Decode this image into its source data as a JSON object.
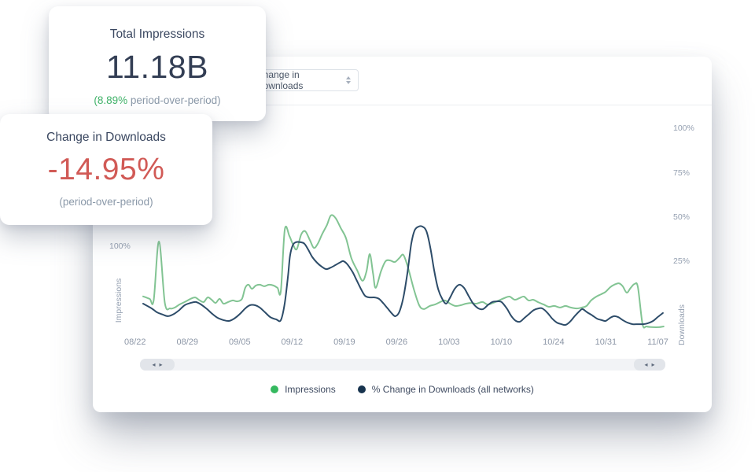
{
  "cards": {
    "total_impressions": {
      "title": "Total Impressions",
      "value": "11.18B",
      "delta_value": "(8.89%",
      "delta_label": " period-over-period)"
    },
    "change_in_downloads": {
      "title": "Change in Downloads",
      "value": "-14.95%",
      "caption": "(period-over-period)"
    }
  },
  "panel": {
    "metric_select": {
      "value": "Change in Downloads"
    },
    "scrollbar": {
      "left_arrow": "◂",
      "right_arrow": "▸"
    }
  },
  "colors": {
    "accent_green": "#3fb268",
    "accent_red": "#d15a56",
    "line_green": "#82c493",
    "line_navy": "#2d4c69",
    "legend_green_dot": "#35b95f",
    "legend_navy_dot": "#17334e"
  },
  "chart_data": {
    "type": "line",
    "title": "",
    "x_unit": "days since 08/22",
    "value_unit": "%",
    "x_tick_labels": [
      "08/22",
      "08/29",
      "09/05",
      "09/12",
      "09/19",
      "09/26",
      "10/03",
      "10/10",
      "10/24",
      "10/31",
      "11/07"
    ],
    "y_axis_left": {
      "label": "Impressions",
      "ticks": [
        "100%"
      ]
    },
    "y_axis_right": {
      "label": "Downloads",
      "ticks": [
        "100%",
        "75%",
        "50%",
        "25%"
      ],
      "tick_values": [
        100,
        75,
        50,
        25
      ]
    },
    "grid": false,
    "legend_position": "bottom",
    "legend": [
      {
        "name": "Impressions",
        "color": "#35b95f"
      },
      {
        "name": "% Change in Downloads (all networks)",
        "color": "#17334e"
      }
    ],
    "series": [
      {
        "name": "Impressions",
        "color": "#82c493",
        "points": [
          [
            0,
            5
          ],
          [
            1,
            3.6
          ],
          [
            1.6,
            2.7
          ],
          [
            2.4,
            36
          ],
          [
            3.3,
            1.3
          ],
          [
            4.1,
            -1.8
          ],
          [
            4.8,
            -1.3
          ],
          [
            5.5,
            0.4
          ],
          [
            6.3,
            1.8
          ],
          [
            7.2,
            3.6
          ],
          [
            7.9,
            4.4
          ],
          [
            8.6,
            2.7
          ],
          [
            9.2,
            1.8
          ],
          [
            9.8,
            4.4
          ],
          [
            10.4,
            3.1
          ],
          [
            11,
            1.3
          ],
          [
            11.6,
            3.6
          ],
          [
            12.2,
            0.9
          ],
          [
            12.9,
            1.8
          ],
          [
            13.6,
            2.7
          ],
          [
            14.3,
            2.2
          ],
          [
            15,
            3.6
          ],
          [
            15.5,
            9.8
          ],
          [
            16,
            11.6
          ],
          [
            16.5,
            9.3
          ],
          [
            17.1,
            11.1
          ],
          [
            17.7,
            11.6
          ],
          [
            18.4,
            10.7
          ],
          [
            19.1,
            11.6
          ],
          [
            19.8,
            11.1
          ],
          [
            20.4,
            9.8
          ],
          [
            20.9,
            8
          ],
          [
            21.5,
            42.7
          ],
          [
            22.2,
            39.1
          ],
          [
            22.7,
            34.7
          ],
          [
            23.3,
            31.6
          ],
          [
            24,
            40
          ],
          [
            24.6,
            41.8
          ],
          [
            25.3,
            36.9
          ],
          [
            25.9,
            32.4
          ],
          [
            26.5,
            34.7
          ],
          [
            27.2,
            40.4
          ],
          [
            27.9,
            45.3
          ],
          [
            28.5,
            50.7
          ],
          [
            29.2,
            49.3
          ],
          [
            30,
            43.6
          ],
          [
            30.8,
            37.8
          ],
          [
            31.6,
            26.7
          ],
          [
            32.5,
            19.6
          ],
          [
            33.3,
            13.8
          ],
          [
            33.9,
            19.1
          ],
          [
            34.4,
            28.9
          ],
          [
            34.9,
            17.8
          ],
          [
            35.3,
            9.8
          ],
          [
            36.1,
            19.1
          ],
          [
            36.8,
            24.9
          ],
          [
            37.5,
            25.3
          ],
          [
            38.2,
            24.4
          ],
          [
            38.9,
            26.7
          ],
          [
            39.5,
            28.4
          ],
          [
            40.2,
            21.3
          ],
          [
            41.1,
            8.9
          ],
          [
            41.9,
            0
          ],
          [
            42.6,
            -2.2
          ],
          [
            43.5,
            -0.4
          ],
          [
            44.3,
            0.4
          ],
          [
            45.1,
            1.8
          ],
          [
            45.8,
            2.7
          ],
          [
            46.6,
            0.9
          ],
          [
            47.4,
            -0.4
          ],
          [
            48.2,
            0
          ],
          [
            49,
            0.9
          ],
          [
            49.8,
            1.3
          ],
          [
            50.6,
            0.9
          ],
          [
            51.5,
            1.8
          ],
          [
            52.3,
            0.4
          ],
          [
            53.1,
            1.3
          ],
          [
            54,
            2.7
          ],
          [
            54.8,
            4
          ],
          [
            55.6,
            4.9
          ],
          [
            56.4,
            3.1
          ],
          [
            57.1,
            4
          ],
          [
            57.8,
            4.9
          ],
          [
            58.5,
            2.7
          ],
          [
            59.2,
            3.1
          ],
          [
            59.9,
            1.8
          ],
          [
            60.8,
            0.4
          ],
          [
            61.6,
            -0.9
          ],
          [
            62.4,
            -0.4
          ],
          [
            63.3,
            -1.3
          ],
          [
            64.1,
            -0.4
          ],
          [
            64.9,
            -1.3
          ],
          [
            65.8,
            -1.8
          ],
          [
            66.6,
            -1.3
          ],
          [
            67.3,
            -0.4
          ],
          [
            68,
            2.7
          ],
          [
            68.8,
            4.9
          ],
          [
            69.5,
            6.2
          ],
          [
            70.2,
            7.6
          ],
          [
            70.9,
            10.2
          ],
          [
            71.5,
            11.6
          ],
          [
            72.2,
            12.4
          ],
          [
            72.8,
            10.7
          ],
          [
            73.4,
            7.1
          ],
          [
            74,
            9.8
          ],
          [
            74.6,
            12
          ],
          [
            75.1,
            10.2
          ],
          [
            75.8,
            -10.7
          ],
          [
            76.4,
            -12
          ],
          [
            77.4,
            -12.4
          ],
          [
            78.3,
            -12.4
          ],
          [
            79,
            -12
          ]
        ]
      },
      {
        "name": "% Change in Downloads (all networks)",
        "color": "#2d4c69",
        "points": [
          [
            0,
            0.9
          ],
          [
            1.3,
            -1.8
          ],
          [
            2.1,
            -4
          ],
          [
            3,
            -5.3
          ],
          [
            3.8,
            -6.2
          ],
          [
            4.7,
            -4.9
          ],
          [
            5.5,
            -2.7
          ],
          [
            6.3,
            0
          ],
          [
            7.2,
            1.3
          ],
          [
            8,
            1.8
          ],
          [
            8.8,
            0.4
          ],
          [
            9.7,
            -2.2
          ],
          [
            10.5,
            -4.9
          ],
          [
            11.3,
            -7.1
          ],
          [
            12.2,
            -8.4
          ],
          [
            13,
            -8.9
          ],
          [
            13.8,
            -7.6
          ],
          [
            14.7,
            -4.9
          ],
          [
            15.5,
            -1.8
          ],
          [
            16.2,
            0
          ],
          [
            17,
            0
          ],
          [
            17.7,
            -1.3
          ],
          [
            18.5,
            -4
          ],
          [
            19.3,
            -6.7
          ],
          [
            20.2,
            -8
          ],
          [
            20.9,
            -8.4
          ],
          [
            21.5,
            1.3
          ],
          [
            22,
            16.9
          ],
          [
            22.3,
            28
          ],
          [
            22.7,
            33.8
          ],
          [
            23.2,
            35.6
          ],
          [
            23.9,
            35.6
          ],
          [
            24.5,
            34.7
          ],
          [
            25.1,
            31.1
          ],
          [
            25.7,
            27.1
          ],
          [
            26.4,
            24
          ],
          [
            27.1,
            21.8
          ],
          [
            27.8,
            20.4
          ],
          [
            28.5,
            21.3
          ],
          [
            29.2,
            22.7
          ],
          [
            30,
            24.4
          ],
          [
            30.4,
            24.9
          ],
          [
            31,
            23.1
          ],
          [
            31.8,
            18.7
          ],
          [
            32.4,
            14.2
          ],
          [
            33.1,
            8.9
          ],
          [
            33.7,
            5.3
          ],
          [
            34.4,
            4.4
          ],
          [
            35.1,
            4.4
          ],
          [
            35.8,
            3.6
          ],
          [
            36.5,
            0.9
          ],
          [
            37.2,
            -2.2
          ],
          [
            37.8,
            -4.9
          ],
          [
            38.3,
            -6.2
          ],
          [
            38.9,
            -3.6
          ],
          [
            39.5,
            4.4
          ],
          [
            40.1,
            17.8
          ],
          [
            40.7,
            34.7
          ],
          [
            41.2,
            42.2
          ],
          [
            41.8,
            44.4
          ],
          [
            42.4,
            44.4
          ],
          [
            43,
            41.8
          ],
          [
            43.6,
            32.4
          ],
          [
            44.2,
            19.1
          ],
          [
            44.8,
            8.9
          ],
          [
            45.4,
            3.6
          ],
          [
            46,
            0.9
          ],
          [
            46.6,
            4.4
          ],
          [
            47.3,
            9.3
          ],
          [
            48,
            11.6
          ],
          [
            48.7,
            9.8
          ],
          [
            49.4,
            5.3
          ],
          [
            50.1,
            0.9
          ],
          [
            50.9,
            -1.8
          ],
          [
            51.6,
            -2.2
          ],
          [
            52.3,
            0
          ],
          [
            53,
            1.8
          ],
          [
            53.7,
            2.2
          ],
          [
            54.4,
            1.8
          ],
          [
            55.2,
            -1.8
          ],
          [
            55.9,
            -6.2
          ],
          [
            56.6,
            -8.9
          ],
          [
            57.2,
            -9.3
          ],
          [
            57.9,
            -7.1
          ],
          [
            58.6,
            -4.9
          ],
          [
            59.3,
            -2.7
          ],
          [
            60,
            -1.8
          ],
          [
            60.6,
            -1.8
          ],
          [
            61.4,
            -4.4
          ],
          [
            62.1,
            -7.6
          ],
          [
            62.8,
            -9.8
          ],
          [
            63.5,
            -10.7
          ],
          [
            64.1,
            -11.1
          ],
          [
            64.8,
            -9.3
          ],
          [
            65.5,
            -6.2
          ],
          [
            66.3,
            -3.1
          ],
          [
            66.7,
            -2.2
          ],
          [
            67.4,
            -4
          ],
          [
            68.2,
            -5.8
          ],
          [
            68.9,
            -7.6
          ],
          [
            69.6,
            -8.4
          ],
          [
            70.2,
            -8.9
          ],
          [
            70.9,
            -7.1
          ],
          [
            71.5,
            -6.2
          ],
          [
            72.1,
            -6.7
          ],
          [
            72.8,
            -8.4
          ],
          [
            73.5,
            -9.8
          ],
          [
            74.3,
            -10.7
          ],
          [
            75.1,
            -10.7
          ],
          [
            75.9,
            -10.7
          ],
          [
            76.6,
            -10.2
          ],
          [
            77.4,
            -8.9
          ],
          [
            78.1,
            -6.7
          ],
          [
            78.9,
            -4.4
          ]
        ]
      }
    ]
  }
}
